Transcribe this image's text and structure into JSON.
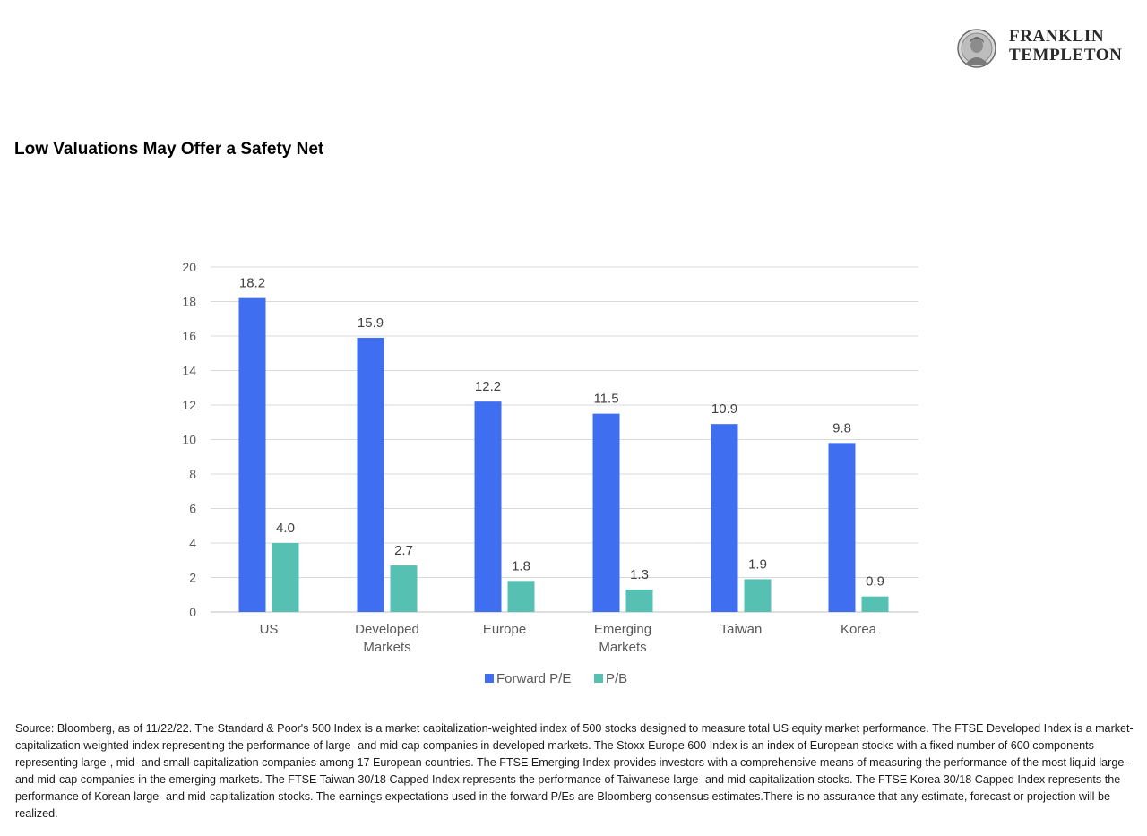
{
  "logo": {
    "line1": "FRANKLIN",
    "line2": "TEMPLETON",
    "medallion_icon": "franklin-portrait-medallion"
  },
  "title": "Low Valuations May Offer a Safety Net",
  "chart_data": {
    "type": "bar",
    "categories": [
      [
        "US"
      ],
      [
        "Developed",
        "Markets"
      ],
      [
        "Europe"
      ],
      [
        "Emerging",
        "Markets"
      ],
      [
        "Taiwan"
      ],
      [
        "Korea"
      ]
    ],
    "series": [
      {
        "name": "Forward P/E",
        "color": "#3f6ff0",
        "values": [
          18.2,
          15.9,
          12.2,
          11.5,
          10.9,
          9.8
        ],
        "labels": [
          "18.2",
          "15.9",
          "12.2",
          "11.5",
          "10.9",
          "9.8"
        ]
      },
      {
        "name": "P/B",
        "color": "#56c0b3",
        "values": [
          4.0,
          2.7,
          1.8,
          1.3,
          1.9,
          0.9
        ],
        "labels": [
          "4.0",
          "2.7",
          "1.8",
          "1.3",
          "1.9",
          "0.9"
        ]
      }
    ],
    "ylim": [
      0,
      20
    ],
    "yticks": [
      0,
      2,
      4,
      6,
      8,
      10,
      12,
      14,
      16,
      18,
      20
    ],
    "grid": true,
    "legend_position": "bottom-center"
  },
  "source": "Source: Bloomberg, as of 11/22/22. The Standard & Poor's 500 Index is a market capitalization-weighted index of 500 stocks designed to measure total US equity market performance. The FTSE Developed Index is a market-capitalization weighted index representing the performance of large- and mid-cap companies in developed markets. The Stoxx Europe 600 Index is an index of European stocks with a fixed number of 600 components representing large-, mid- and small-capitalization companies among 17 European countries. The FTSE Emerging Index provides investors with a comprehensive means of measuring the performance of the most liquid large- and mid-cap companies in the emerging markets. The FTSE Taiwan 30/18 Capped Index represents the performance of Taiwanese large- and mid-capitalization stocks. The FTSE Korea 30/18 Capped Index represents the performance of Korean large- and mid-capitalization stocks. The earnings expectations used in the forward P/Es are Bloomberg consensus estimates.There is no assurance that any estimate, forecast or projection will be realized."
}
